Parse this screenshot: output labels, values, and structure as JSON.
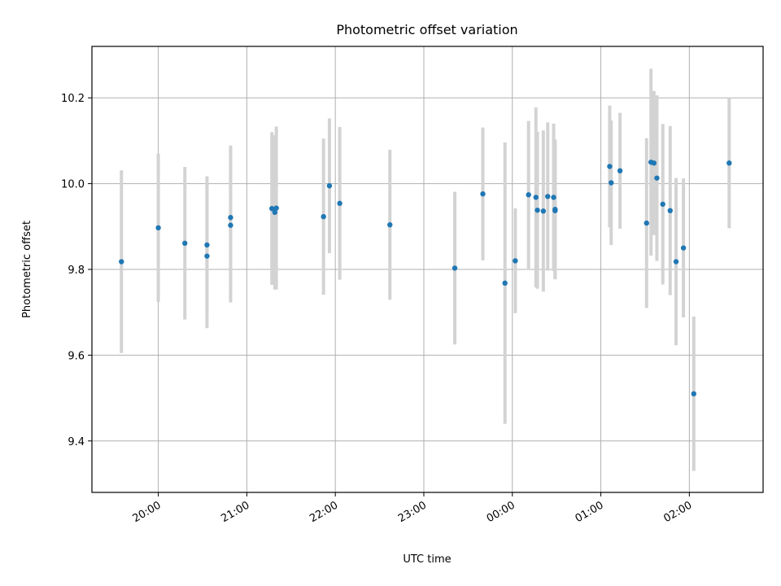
{
  "chart_data": {
    "type": "scatter",
    "title": "Photometric offset variation",
    "xlabel": "UTC time",
    "ylabel": "Photometric offset",
    "x_unit": "hours UTC (values >= 24 are after midnight)",
    "xlim": [
      "19:15",
      "02:50"
    ],
    "ylim": [
      9.28,
      10.32
    ],
    "x_ticks": [
      {
        "value": "20:00",
        "label": "20:00"
      },
      {
        "value": "21:00",
        "label": "21:00"
      },
      {
        "value": "22:00",
        "label": "22:00"
      },
      {
        "value": "23:00",
        "label": "23:00"
      },
      {
        "value": "00:00",
        "label": "00:00"
      },
      {
        "value": "01:00",
        "label": "01:00"
      },
      {
        "value": "02:00",
        "label": "02:00"
      }
    ],
    "y_ticks": [
      9.4,
      9.6,
      9.8,
      10.0,
      10.2
    ],
    "y_tick_labels": [
      "9.4",
      "9.6",
      "9.8",
      "10.0",
      "10.2"
    ],
    "grid": true,
    "colors": {
      "marker": "#1f77b4",
      "errorbar": "#d3d3d3",
      "grid": "#b0b0b0"
    },
    "points": [
      {
        "x": "19:35",
        "y": 9.818,
        "err": 0.213
      },
      {
        "x": "20:00",
        "y": 9.897,
        "err": 0.173
      },
      {
        "x": "20:18",
        "y": 9.861,
        "err": 0.178
      },
      {
        "x": "20:33",
        "y": 9.857,
        "err": 0.16
      },
      {
        "x": "20:33",
        "y": 9.831,
        "err": 0.168
      },
      {
        "x": "20:49",
        "y": 9.921,
        "err": 0.168
      },
      {
        "x": "20:49",
        "y": 9.903,
        "err": 0.18
      },
      {
        "x": "21:17",
        "y": 9.942,
        "err": 0.178
      },
      {
        "x": "21:19",
        "y": 9.933,
        "err": 0.18
      },
      {
        "x": "21:20",
        "y": 9.943,
        "err": 0.19
      },
      {
        "x": "21:52",
        "y": 9.923,
        "err": 0.182
      },
      {
        "x": "21:56",
        "y": 9.995,
        "err": 0.157
      },
      {
        "x": "22:03",
        "y": 9.954,
        "err": 0.178
      },
      {
        "x": "22:37",
        "y": 9.904,
        "err": 0.175
      },
      {
        "x": "23:21",
        "y": 9.803,
        "err": 0.178
      },
      {
        "x": "23:40",
        "y": 9.976,
        "err": 0.155
      },
      {
        "x": "23:55",
        "y": 9.768,
        "err": 0.328
      },
      {
        "x": "00:02",
        "y": 9.82,
        "err": 0.122
      },
      {
        "x": "00:11",
        "y": 9.974,
        "err": 0.172
      },
      {
        "x": "00:16",
        "y": 9.968,
        "err": 0.21
      },
      {
        "x": "00:17",
        "y": 9.938,
        "err": 0.183
      },
      {
        "x": "00:21",
        "y": 9.936,
        "err": 0.188
      },
      {
        "x": "00:24",
        "y": 9.97,
        "err": 0.173
      },
      {
        "x": "00:28",
        "y": 9.968,
        "err": 0.172
      },
      {
        "x": "00:29",
        "y": 9.94,
        "err": 0.163
      },
      {
        "x": "00:29",
        "y": 9.937,
        "err": 0.16
      },
      {
        "x": "01:06",
        "y": 10.04,
        "err": 0.142
      },
      {
        "x": "01:07",
        "y": 10.002,
        "err": 0.145
      },
      {
        "x": "01:13",
        "y": 10.03,
        "err": 0.135
      },
      {
        "x": "01:31",
        "y": 9.908,
        "err": 0.198
      },
      {
        "x": "01:34",
        "y": 10.05,
        "err": 0.218
      },
      {
        "x": "01:36",
        "y": 10.048,
        "err": 0.168
      },
      {
        "x": "01:38",
        "y": 10.013,
        "err": 0.193
      },
      {
        "x": "01:42",
        "y": 9.952,
        "err": 0.187
      },
      {
        "x": "01:47",
        "y": 9.937,
        "err": 0.197
      },
      {
        "x": "01:51",
        "y": 9.818,
        "err": 0.195
      },
      {
        "x": "01:56",
        "y": 9.85,
        "err": 0.162
      },
      {
        "x": "02:03",
        "y": 9.51,
        "err": 0.18
      },
      {
        "x": "02:27",
        "y": 10.048,
        "err": 0.152
      }
    ]
  }
}
